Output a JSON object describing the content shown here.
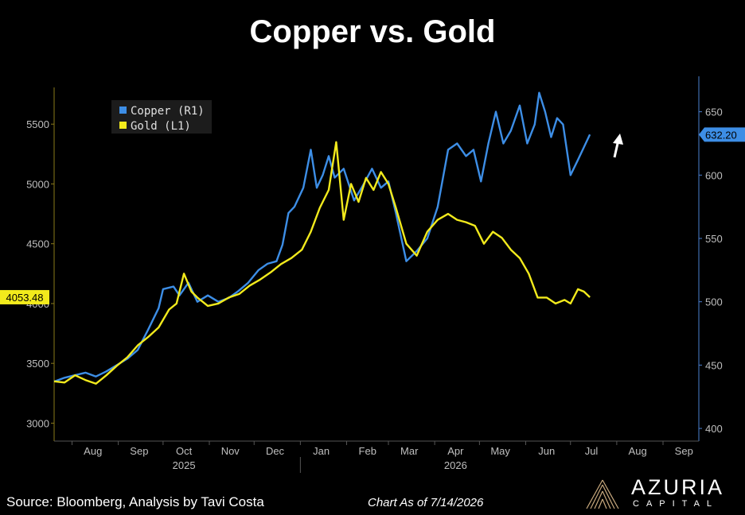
{
  "title": "Copper vs. Gold",
  "footer": {
    "source": "Source: Bloomberg, Analysis by Tavi Costa",
    "as_of": "Chart As of 7/14/2026"
  },
  "logo": {
    "name": "AZURIA",
    "sub": "CAPITAL"
  },
  "colors": {
    "background": "#000000",
    "copper": "#3d8ee6",
    "gold": "#f2ea1c",
    "axis_text": "#bfbfbf",
    "right_axis": "#4a7fd1",
    "legend_bg": "#1c1c1c",
    "arrow": "#ffffff"
  },
  "chart_data": {
    "type": "line",
    "legend": {
      "position": "top-left",
      "items": [
        "Copper (R1)",
        "Gold (L1)"
      ]
    },
    "x_axis": {
      "months": [
        "Aug",
        "Sep",
        "Oct",
        "Nov",
        "Dec",
        "Jan",
        "Feb",
        "Mar",
        "Apr",
        "May",
        "Jun",
        "Jul",
        "Aug",
        "Sep"
      ],
      "years": [
        "2025",
        "2026"
      ],
      "range": [
        "2025-07-20",
        "2026-09-25"
      ]
    },
    "left_axis": {
      "ticks": [
        3000,
        3500,
        4000,
        4500,
        5000,
        5500
      ],
      "ylim": [
        2850,
        5900
      ],
      "last_value_label": "4053.48"
    },
    "right_axis": {
      "ticks": [
        400,
        450,
        500,
        550,
        600,
        650
      ],
      "ylim": [
        390,
        678
      ],
      "last_value_label": "632.20"
    },
    "annotation": {
      "type": "arrow",
      "direction": "up",
      "near": "copper"
    },
    "series": [
      {
        "name": "Copper (R1)",
        "axis": "right",
        "points": [
          [
            "2025-07-20",
            437
          ],
          [
            "2025-07-27",
            440
          ],
          [
            "2025-08-03",
            442
          ],
          [
            "2025-08-10",
            444
          ],
          [
            "2025-08-17",
            441
          ],
          [
            "2025-08-24",
            445
          ],
          [
            "2025-08-31",
            450
          ],
          [
            "2025-09-07",
            455
          ],
          [
            "2025-09-14",
            462
          ],
          [
            "2025-09-21",
            478
          ],
          [
            "2025-09-28",
            495
          ],
          [
            "2025-10-01",
            510
          ],
          [
            "2025-10-08",
            512
          ],
          [
            "2025-10-12",
            505
          ],
          [
            "2025-10-18",
            515
          ],
          [
            "2025-10-24",
            500
          ],
          [
            "2025-10-31",
            505
          ],
          [
            "2025-11-07",
            500
          ],
          [
            "2025-11-14",
            503
          ],
          [
            "2025-11-20",
            508
          ],
          [
            "2025-11-27",
            515
          ],
          [
            "2025-12-04",
            525
          ],
          [
            "2025-12-10",
            530
          ],
          [
            "2025-12-16",
            532
          ],
          [
            "2025-12-20",
            545
          ],
          [
            "2025-12-24",
            570
          ],
          [
            "2025-12-28",
            575
          ],
          [
            "2026-01-03",
            590
          ],
          [
            "2026-01-08",
            620
          ],
          [
            "2026-01-12",
            590
          ],
          [
            "2026-01-16",
            600
          ],
          [
            "2026-01-20",
            615
          ],
          [
            "2026-01-24",
            598
          ],
          [
            "2026-01-30",
            605
          ],
          [
            "2026-02-06",
            580
          ],
          [
            "2026-02-12",
            592
          ],
          [
            "2026-02-18",
            605
          ],
          [
            "2026-02-24",
            590
          ],
          [
            "2026-03-01",
            595
          ],
          [
            "2026-03-06",
            570
          ],
          [
            "2026-03-13",
            532
          ],
          [
            "2026-03-20",
            540
          ],
          [
            "2026-03-27",
            550
          ],
          [
            "2026-04-03",
            575
          ],
          [
            "2026-04-10",
            620
          ],
          [
            "2026-04-16",
            625
          ],
          [
            "2026-04-22",
            615
          ],
          [
            "2026-04-27",
            620
          ],
          [
            "2026-05-02",
            595
          ],
          [
            "2026-05-07",
            625
          ],
          [
            "2026-05-12",
            650
          ],
          [
            "2026-05-17",
            625
          ],
          [
            "2026-05-22",
            635
          ],
          [
            "2026-05-28",
            655
          ],
          [
            "2026-06-02",
            625
          ],
          [
            "2026-06-07",
            640
          ],
          [
            "2026-06-10",
            665
          ],
          [
            "2026-06-14",
            650
          ],
          [
            "2026-06-18",
            630
          ],
          [
            "2026-06-22",
            645
          ],
          [
            "2026-06-26",
            640
          ],
          [
            "2026-07-01",
            600
          ],
          [
            "2026-07-06",
            612
          ],
          [
            "2026-07-10",
            622
          ],
          [
            "2026-07-14",
            632
          ]
        ]
      },
      {
        "name": "Gold (L1)",
        "axis": "left",
        "points": [
          [
            "2025-07-20",
            3350
          ],
          [
            "2025-07-27",
            3340
          ],
          [
            "2025-08-03",
            3400
          ],
          [
            "2025-08-10",
            3360
          ],
          [
            "2025-08-17",
            3330
          ],
          [
            "2025-08-24",
            3400
          ],
          [
            "2025-08-31",
            3480
          ],
          [
            "2025-09-07",
            3550
          ],
          [
            "2025-09-14",
            3650
          ],
          [
            "2025-09-21",
            3720
          ],
          [
            "2025-09-28",
            3800
          ],
          [
            "2025-10-05",
            3950
          ],
          [
            "2025-10-10",
            4000
          ],
          [
            "2025-10-15",
            4250
          ],
          [
            "2025-10-20",
            4100
          ],
          [
            "2025-10-24",
            4050
          ],
          [
            "2025-10-31",
            3980
          ],
          [
            "2025-11-07",
            4000
          ],
          [
            "2025-11-14",
            4050
          ],
          [
            "2025-11-21",
            4080
          ],
          [
            "2025-11-28",
            4150
          ],
          [
            "2025-12-05",
            4200
          ],
          [
            "2025-12-12",
            4260
          ],
          [
            "2025-12-19",
            4330
          ],
          [
            "2025-12-26",
            4380
          ],
          [
            "2026-01-02",
            4450
          ],
          [
            "2026-01-08",
            4600
          ],
          [
            "2026-01-14",
            4800
          ],
          [
            "2026-01-20",
            4950
          ],
          [
            "2026-01-25",
            5350
          ],
          [
            "2026-01-30",
            4700
          ],
          [
            "2026-02-04",
            5000
          ],
          [
            "2026-02-09",
            4850
          ],
          [
            "2026-02-14",
            5050
          ],
          [
            "2026-02-19",
            4950
          ],
          [
            "2026-02-24",
            5100
          ],
          [
            "2026-03-01",
            5000
          ],
          [
            "2026-03-06",
            4800
          ],
          [
            "2026-03-13",
            4500
          ],
          [
            "2026-03-20",
            4400
          ],
          [
            "2026-03-27",
            4600
          ],
          [
            "2026-04-03",
            4700
          ],
          [
            "2026-04-10",
            4750
          ],
          [
            "2026-04-16",
            4700
          ],
          [
            "2026-04-22",
            4680
          ],
          [
            "2026-04-28",
            4650
          ],
          [
            "2026-05-04",
            4500
          ],
          [
            "2026-05-10",
            4600
          ],
          [
            "2026-05-16",
            4550
          ],
          [
            "2026-05-22",
            4450
          ],
          [
            "2026-05-28",
            4380
          ],
          [
            "2026-06-03",
            4250
          ],
          [
            "2026-06-09",
            4050
          ],
          [
            "2026-06-15",
            4050
          ],
          [
            "2026-06-21",
            4000
          ],
          [
            "2026-06-27",
            4030
          ],
          [
            "2026-07-01",
            4000
          ],
          [
            "2026-07-06",
            4120
          ],
          [
            "2026-07-10",
            4100
          ],
          [
            "2026-07-14",
            4053
          ]
        ]
      }
    ]
  }
}
